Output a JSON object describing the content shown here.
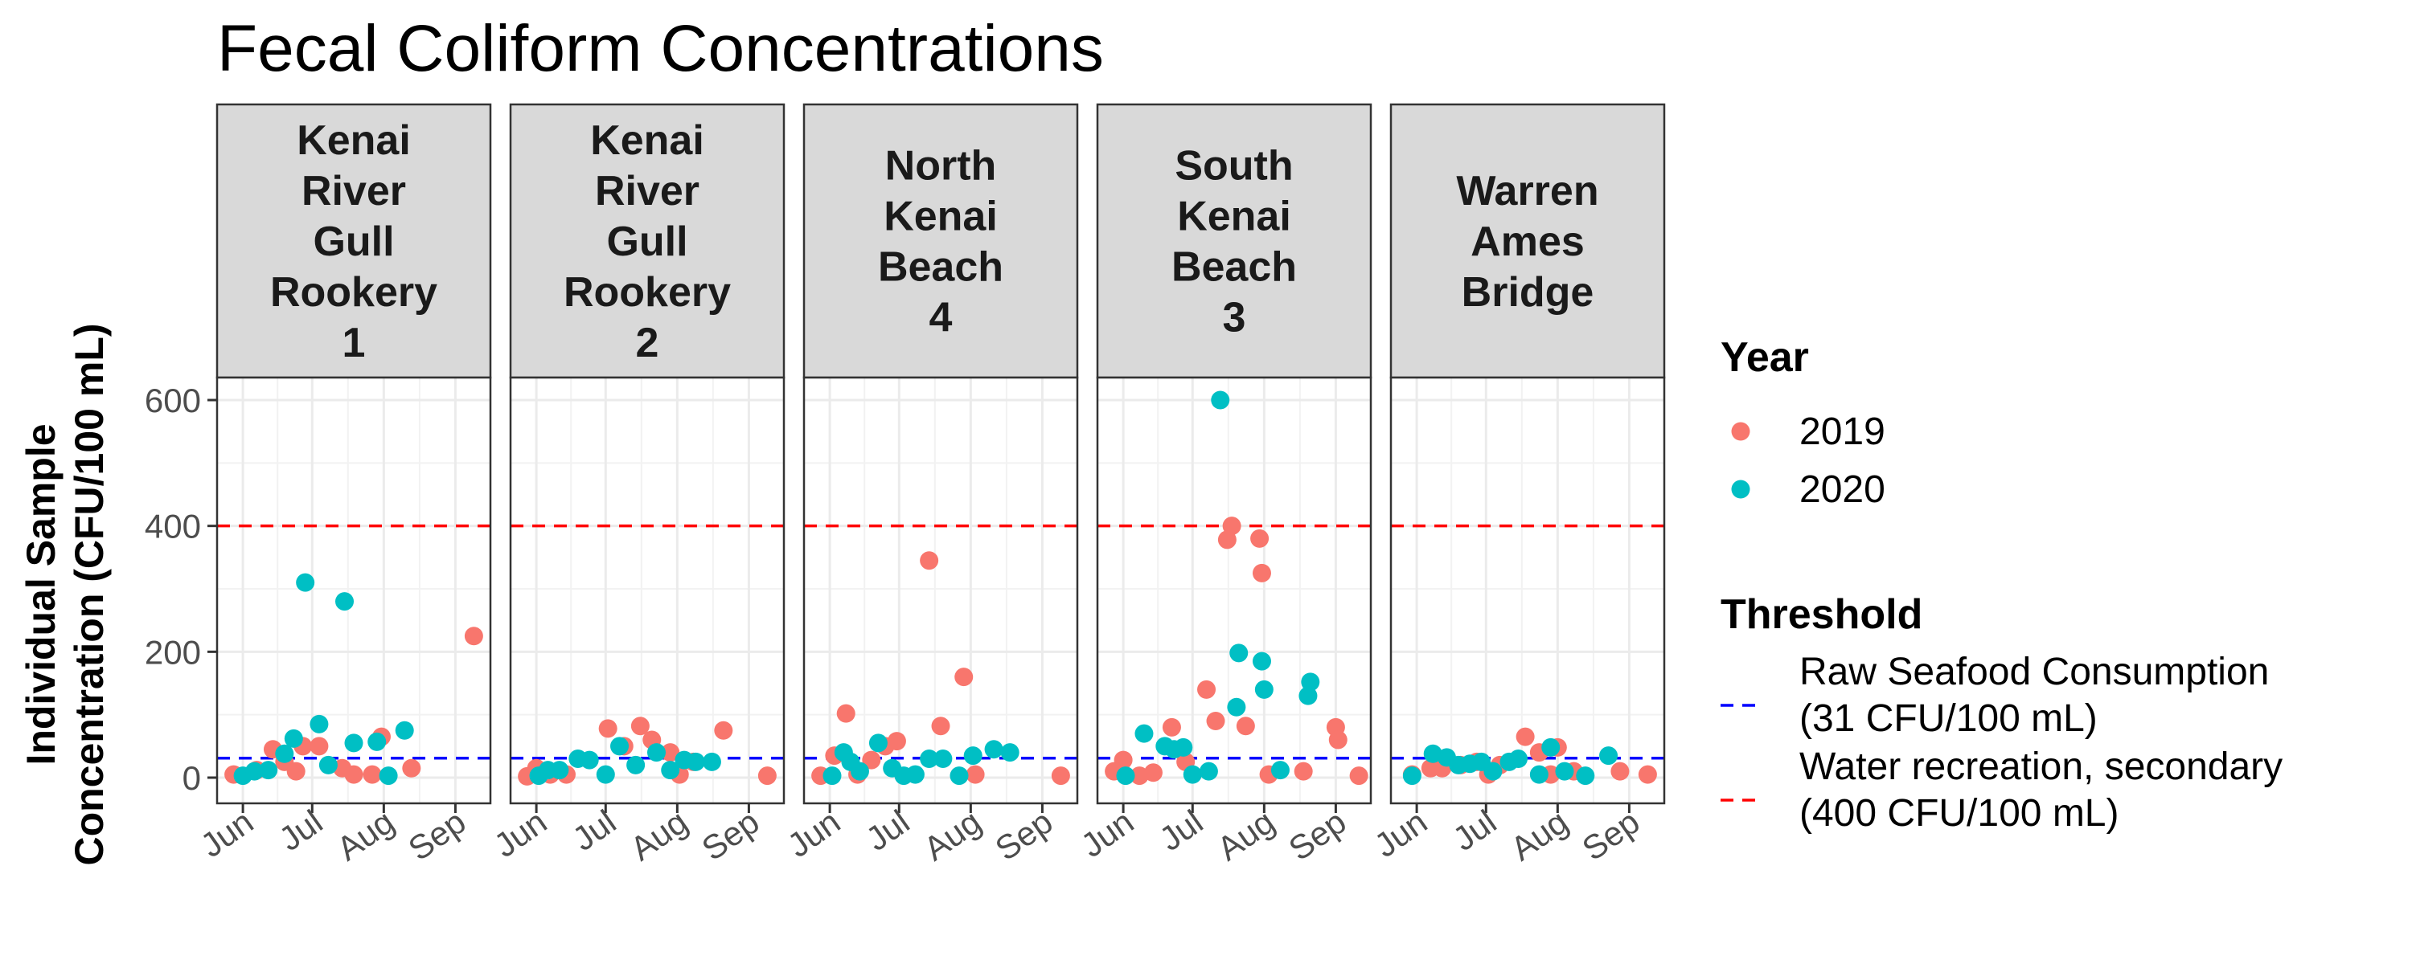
{
  "chart_data": {
    "type": "scatter",
    "title": "Fecal Coliform Concentrations",
    "ylabel_lines": [
      "Individual Sample",
      "Concentration (CFU/100 mL)"
    ],
    "xlabel": "",
    "ylim": [
      0,
      600
    ],
    "yticks": [
      0,
      200,
      400,
      600
    ],
    "xlim_day_of_year": [
      145,
      255
    ],
    "xticks": [
      {
        "label": "Jun",
        "day": 152
      },
      {
        "label": "Jul",
        "day": 182
      },
      {
        "label": "Aug",
        "day": 213
      },
      {
        "label": "Sep",
        "day": 244
      }
    ],
    "grid": true,
    "legend_placement": "right",
    "legend": {
      "year_title": "Year",
      "years": [
        {
          "label": "2019",
          "color": "#F8766D"
        },
        {
          "label": "2020",
          "color": "#00BFC4"
        }
      ],
      "threshold_title": "Threshold",
      "thresholds": [
        {
          "lines": [
            "Raw Seafood Consumption",
            "(31 CFU/100 mL)"
          ],
          "value": 31,
          "color": "#0000FF"
        },
        {
          "lines": [
            "Water recreation, secondary",
            "(400 CFU/100 mL)"
          ],
          "value": 400,
          "color": "#FF0000"
        }
      ]
    },
    "facets": [
      {
        "title_lines": [
          "Kenai",
          "River",
          "Gull",
          "Rookery",
          "1"
        ],
        "series": [
          {
            "name": "2019",
            "points": [
              [
                148,
                5
              ],
              [
                158,
                12
              ],
              [
                165,
                45
              ],
              [
                170,
                25
              ],
              [
                175,
                10
              ],
              [
                178,
                50
              ],
              [
                185,
                50
              ],
              [
                195,
                15
              ],
              [
                200,
                5
              ],
              [
                208,
                5
              ],
              [
                212,
                65
              ],
              [
                225,
                15
              ],
              [
                252,
                225
              ]
            ]
          },
          {
            "name": "2020",
            "points": [
              [
                152,
                3
              ],
              [
                157,
                10
              ],
              [
                163,
                12
              ],
              [
                170,
                38
              ],
              [
                174,
                62
              ],
              [
                179,
                310
              ],
              [
                185,
                85
              ],
              [
                189,
                20
              ],
              [
                196,
                280
              ],
              [
                200,
                55
              ],
              [
                210,
                57
              ],
              [
                215,
                3
              ],
              [
                222,
                75
              ]
            ]
          }
        ]
      },
      {
        "title_lines": [
          "Kenai",
          "River",
          "Gull",
          "Rookery",
          "2"
        ],
        "series": [
          {
            "name": "2019",
            "points": [
              [
                148,
                2
              ],
              [
                152,
                15
              ],
              [
                158,
                5
              ],
              [
                165,
                5
              ],
              [
                183,
                78
              ],
              [
                190,
                50
              ],
              [
                197,
                82
              ],
              [
                202,
                60
              ],
              [
                210,
                40
              ],
              [
                214,
                5
              ],
              [
                220,
                25
              ],
              [
                233,
                75
              ],
              [
                252,
                3
              ]
            ]
          },
          {
            "name": "2020",
            "points": [
              [
                153,
                3
              ],
              [
                157,
                12
              ],
              [
                162,
                12
              ],
              [
                170,
                30
              ],
              [
                175,
                28
              ],
              [
                182,
                5
              ],
              [
                188,
                50
              ],
              [
                195,
                20
              ],
              [
                204,
                40
              ],
              [
                210,
                12
              ],
              [
                216,
                28
              ],
              [
                221,
                25
              ],
              [
                228,
                25
              ]
            ]
          }
        ]
      },
      {
        "title_lines": [
          "North",
          "Kenai",
          "Beach",
          "4"
        ],
        "series": [
          {
            "name": "2019",
            "points": [
              [
                148,
                3
              ],
              [
                154,
                35
              ],
              [
                159,
                102
              ],
              [
                164,
                5
              ],
              [
                170,
                28
              ],
              [
                176,
                50
              ],
              [
                181,
                58
              ],
              [
                195,
                345
              ],
              [
                200,
                82
              ],
              [
                210,
                160
              ],
              [
                215,
                5
              ],
              [
                252,
                3
              ]
            ]
          },
          {
            "name": "2020",
            "points": [
              [
                153,
                3
              ],
              [
                158,
                40
              ],
              [
                161,
                25
              ],
              [
                165,
                10
              ],
              [
                173,
                55
              ],
              [
                179,
                15
              ],
              [
                184,
                3
              ],
              [
                189,
                5
              ],
              [
                195,
                30
              ],
              [
                201,
                30
              ],
              [
                208,
                3
              ],
              [
                214,
                35
              ],
              [
                223,
                45
              ],
              [
                230,
                40
              ]
            ]
          }
        ]
      },
      {
        "title_lines": [
          "South",
          "Kenai",
          "Beach",
          "3"
        ],
        "series": [
          {
            "name": "2019",
            "points": [
              [
                148,
                10
              ],
              [
                152,
                28
              ],
              [
                159,
                3
              ],
              [
                165,
                8
              ],
              [
                173,
                80
              ],
              [
                179,
                25
              ],
              [
                188,
                140
              ],
              [
                192,
                90
              ],
              [
                197,
                378
              ],
              [
                199,
                400
              ],
              [
                205,
                82
              ],
              [
                211,
                380
              ],
              [
                212,
                325
              ],
              [
                215,
                5
              ],
              [
                230,
                10
              ],
              [
                244,
                80
              ],
              [
                245,
                60
              ],
              [
                254,
                3
              ]
            ]
          },
          {
            "name": "2020",
            "points": [
              [
                153,
                3
              ],
              [
                161,
                70
              ],
              [
                170,
                50
              ],
              [
                174,
                45
              ],
              [
                178,
                48
              ],
              [
                182,
                5
              ],
              [
                189,
                10
              ],
              [
                194,
                600
              ],
              [
                201,
                112
              ],
              [
                202,
                198
              ],
              [
                212,
                185
              ],
              [
                213,
                140
              ],
              [
                220,
                12
              ],
              [
                232,
                130
              ],
              [
                233,
                152
              ]
            ]
          }
        ]
      },
      {
        "title_lines": [
          "Warren",
          "Ames",
          "Bridge"
        ],
        "series": [
          {
            "name": "2019",
            "points": [
              [
                150,
                5
              ],
              [
                158,
                15
              ],
              [
                163,
                15
              ],
              [
                171,
                20
              ],
              [
                178,
                25
              ],
              [
                183,
                5
              ],
              [
                188,
                20
              ],
              [
                199,
                65
              ],
              [
                205,
                40
              ],
              [
                210,
                5
              ],
              [
                213,
                48
              ],
              [
                220,
                10
              ],
              [
                240,
                10
              ],
              [
                252,
                5
              ]
            ]
          },
          {
            "name": "2020",
            "points": [
              [
                150,
                3
              ],
              [
                159,
                38
              ],
              [
                165,
                32
              ],
              [
                170,
                20
              ],
              [
                175,
                22
              ],
              [
                180,
                25
              ],
              [
                185,
                10
              ],
              [
                192,
                25
              ],
              [
                196,
                30
              ],
              [
                205,
                5
              ],
              [
                210,
                48
              ],
              [
                216,
                10
              ],
              [
                225,
                3
              ],
              [
                235,
                35
              ]
            ]
          }
        ]
      }
    ]
  }
}
